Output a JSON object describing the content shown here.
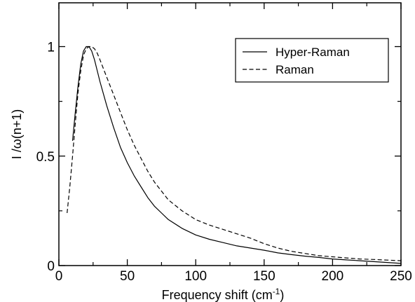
{
  "chart_data": {
    "type": "line",
    "title": "",
    "xlabel": "Frequency shift (cm",
    "xlabel_sup": "-1",
    "xlabel_close": ")",
    "ylabel": "I /ω(n+1)",
    "xlim": [
      0,
      250
    ],
    "ylim": [
      0,
      1.2
    ],
    "xticks": [
      0,
      50,
      100,
      150,
      200,
      250
    ],
    "yticks": [
      0,
      0.5,
      1
    ],
    "ytick_labels": [
      "0",
      "0.5",
      "1"
    ],
    "grid": false,
    "legend_position": "top-right",
    "series": [
      {
        "name": "Hyper-Raman",
        "style": "solid",
        "x": [
          10,
          12,
          14,
          16,
          18,
          20,
          22,
          24,
          26,
          28,
          30,
          35,
          40,
          45,
          50,
          55,
          60,
          65,
          70,
          75,
          80,
          90,
          100,
          110,
          120,
          130,
          140,
          150,
          160,
          170,
          180,
          190,
          200,
          210,
          220,
          230,
          240,
          250
        ],
        "y": [
          0.57,
          0.7,
          0.82,
          0.92,
          0.98,
          1.0,
          1.0,
          0.98,
          0.94,
          0.89,
          0.84,
          0.73,
          0.63,
          0.54,
          0.47,
          0.41,
          0.36,
          0.31,
          0.27,
          0.24,
          0.21,
          0.17,
          0.14,
          0.12,
          0.105,
          0.09,
          0.08,
          0.07,
          0.058,
          0.05,
          0.043,
          0.037,
          0.03,
          0.026,
          0.022,
          0.018,
          0.014,
          0.01
        ]
      },
      {
        "name": "Raman",
        "style": "dashed",
        "x": [
          6,
          8,
          10,
          12,
          14,
          16,
          18,
          20,
          22,
          24,
          26,
          28,
          30,
          35,
          40,
          45,
          50,
          55,
          60,
          65,
          70,
          75,
          80,
          90,
          100,
          110,
          120,
          130,
          140,
          150,
          160,
          170,
          180,
          190,
          200,
          210,
          220,
          230,
          240,
          250
        ],
        "y": [
          0.24,
          0.36,
          0.5,
          0.65,
          0.79,
          0.89,
          0.96,
          0.99,
          1.0,
          1.0,
          0.99,
          0.97,
          0.94,
          0.86,
          0.78,
          0.7,
          0.62,
          0.55,
          0.49,
          0.43,
          0.38,
          0.34,
          0.3,
          0.25,
          0.21,
          0.185,
          0.165,
          0.145,
          0.125,
          0.1,
          0.08,
          0.065,
          0.055,
          0.045,
          0.04,
          0.035,
          0.03,
          0.028,
          0.025,
          0.022
        ]
      }
    ]
  }
}
